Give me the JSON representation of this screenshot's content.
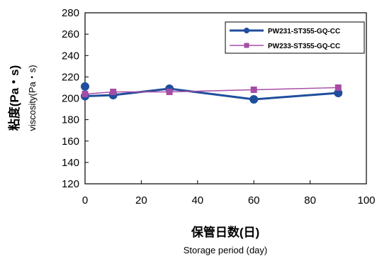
{
  "chart_data": {
    "type": "line",
    "xlabel": "保管日数(日)",
    "xlabel_sub": "Storage period (day)",
    "ylabel": "粘度(Pa・s)",
    "ylabel_sub": "viscosity(Pa・s)",
    "xlim": [
      0,
      100
    ],
    "ylim": [
      120,
      280
    ],
    "x_ticks": [
      0,
      20,
      40,
      60,
      80,
      100
    ],
    "y_ticks": [
      120,
      140,
      160,
      180,
      200,
      220,
      240,
      260,
      280
    ],
    "grid": false,
    "legend_position": "top-right",
    "series": [
      {
        "name": "PW231-ST355-GQ-CC",
        "color": "#1f4e9c",
        "marker": "circle",
        "points": [
          [
            0,
            211
          ],
          [
            0,
            202
          ],
          [
            10,
            203
          ],
          [
            30,
            209
          ],
          [
            60,
            199
          ],
          [
            90,
            205
          ]
        ]
      },
      {
        "name": "PW233-ST355-GQ-CC",
        "color": "#a64ca6",
        "marker": "square",
        "points": [
          [
            0,
            204
          ],
          [
            10,
            206
          ],
          [
            30,
            206
          ],
          [
            60,
            208
          ],
          [
            90,
            210
          ]
        ]
      }
    ]
  }
}
